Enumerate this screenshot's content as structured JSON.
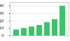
{
  "chart_data": {
    "type": "bar",
    "categories": [
      null,
      null,
      null,
      null,
      null,
      null,
      null
    ],
    "values": [
      8,
      10,
      12,
      14,
      18,
      22,
      40
    ],
    "color": "#3cc46a",
    "ylim": [
      0,
      45
    ],
    "yticks": [
      0,
      10,
      20,
      30,
      40
    ],
    "grid": true
  }
}
